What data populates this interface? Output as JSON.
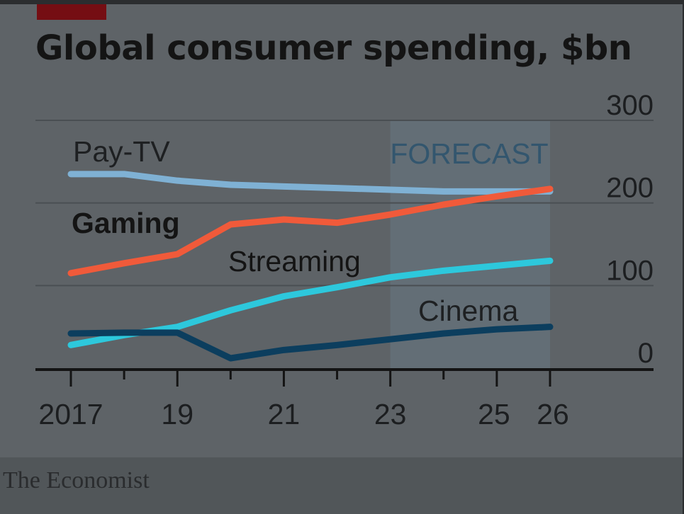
{
  "chart_data": {
    "type": "line",
    "title": "Global consumer spending, $bn",
    "x": [
      2017,
      2018,
      2019,
      2020,
      2021,
      2022,
      2023,
      2024,
      2025,
      2026
    ],
    "x_tick_labels": [
      "2017",
      "19",
      "21",
      "23",
      "25",
      "26"
    ],
    "x_tick_values": [
      2017,
      2019,
      2021,
      2023,
      2025,
      2026
    ],
    "ylim": [
      0,
      300
    ],
    "y_ticks": [
      "300",
      "200",
      "100",
      "0"
    ],
    "y_tick_values": [
      300,
      200,
      100,
      0
    ],
    "grid": true,
    "forecast": {
      "label": "FORECAST",
      "from": 2023,
      "to": 2026
    },
    "series": [
      {
        "name": "Pay-TV",
        "color": "#7fb1d4",
        "values": [
          235,
          235,
          227,
          222,
          220,
          218,
          216,
          214,
          214,
          214
        ]
      },
      {
        "name": "Gaming",
        "color": "#f05a3a",
        "values": [
          115,
          127,
          138,
          174,
          180,
          176,
          186,
          198,
          208,
          217
        ]
      },
      {
        "name": "Streaming",
        "color": "#2dc8dc",
        "values": [
          28,
          40,
          50,
          70,
          87,
          98,
          110,
          118,
          124,
          130
        ]
      },
      {
        "name": "Cinema",
        "color": "#0c3e5e",
        "values": [
          42,
          43,
          43,
          12,
          22,
          28,
          35,
          42,
          47,
          50
        ]
      }
    ],
    "source": "The Economist"
  }
}
